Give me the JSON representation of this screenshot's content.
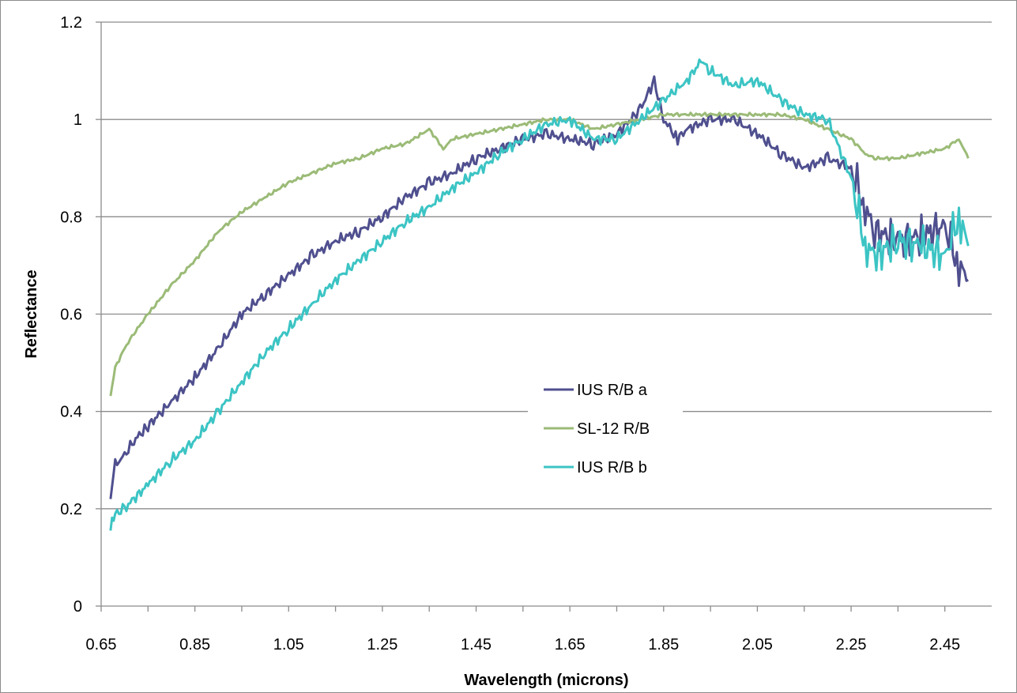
{
  "chart_data": {
    "type": "line",
    "title": "",
    "xlabel": "Wavelength (microns)",
    "ylabel": "Reflectance",
    "xlim": [
      0.65,
      2.55
    ],
    "ylim": [
      0,
      1.2
    ],
    "x_ticks": [
      "0.65",
      "0.85",
      "1.05",
      "1.25",
      "1.45",
      "1.65",
      "1.85",
      "2.05",
      "2.25",
      "2.45"
    ],
    "y_ticks": [
      "0",
      "0.2",
      "0.4",
      "0.6",
      "0.8",
      "1",
      "1.2"
    ],
    "grid": "horizontal major gridlines",
    "legend_position": "center",
    "series": [
      {
        "name": "IUS R/B a",
        "color": "#4f4f8f",
        "x": [
          0.67,
          0.68,
          0.7,
          0.72,
          0.75,
          0.8,
          0.85,
          0.9,
          0.95,
          1.0,
          1.05,
          1.1,
          1.15,
          1.2,
          1.25,
          1.3,
          1.35,
          1.4,
          1.45,
          1.5,
          1.55,
          1.6,
          1.65,
          1.7,
          1.75,
          1.8,
          1.83,
          1.85,
          1.88,
          1.9,
          1.95,
          2.0,
          2.05,
          2.1,
          2.15,
          2.2,
          2.25,
          2.28,
          2.3,
          2.35,
          2.4,
          2.45,
          2.48,
          2.5
        ],
        "y": [
          0.22,
          0.29,
          0.31,
          0.34,
          0.37,
          0.42,
          0.47,
          0.53,
          0.6,
          0.64,
          0.68,
          0.72,
          0.75,
          0.77,
          0.8,
          0.84,
          0.87,
          0.89,
          0.92,
          0.94,
          0.96,
          0.97,
          0.96,
          0.95,
          0.97,
          1.02,
          1.08,
          1.0,
          0.96,
          0.98,
          1.0,
          1.0,
          0.97,
          0.93,
          0.9,
          0.92,
          0.9,
          0.82,
          0.77,
          0.75,
          0.76,
          0.78,
          0.7,
          0.67
        ]
      },
      {
        "name": "SL-12 R/B",
        "color": "#9bbb77",
        "x": [
          0.67,
          0.68,
          0.7,
          0.72,
          0.75,
          0.8,
          0.85,
          0.9,
          0.95,
          1.0,
          1.05,
          1.1,
          1.15,
          1.2,
          1.25,
          1.3,
          1.35,
          1.38,
          1.4,
          1.45,
          1.5,
          1.55,
          1.6,
          1.65,
          1.7,
          1.75,
          1.8,
          1.85,
          1.9,
          1.95,
          2.0,
          2.05,
          2.1,
          2.15,
          2.2,
          2.25,
          2.28,
          2.3,
          2.35,
          2.4,
          2.45,
          2.48,
          2.5
        ],
        "y": [
          0.43,
          0.49,
          0.53,
          0.56,
          0.6,
          0.66,
          0.71,
          0.77,
          0.81,
          0.84,
          0.87,
          0.89,
          0.91,
          0.92,
          0.94,
          0.95,
          0.98,
          0.94,
          0.96,
          0.97,
          0.98,
          0.99,
          1.0,
          1.0,
          0.98,
          0.99,
          1.0,
          1.01,
          1.01,
          1.01,
          1.01,
          1.01,
          1.01,
          1.0,
          0.98,
          0.96,
          0.93,
          0.92,
          0.92,
          0.93,
          0.94,
          0.96,
          0.92
        ]
      },
      {
        "name": "IUS R/B b",
        "color": "#3cc4c4",
        "x": [
          0.67,
          0.68,
          0.7,
          0.72,
          0.75,
          0.8,
          0.85,
          0.9,
          0.95,
          1.0,
          1.05,
          1.1,
          1.15,
          1.2,
          1.25,
          1.3,
          1.35,
          1.4,
          1.45,
          1.5,
          1.55,
          1.6,
          1.65,
          1.7,
          1.75,
          1.8,
          1.85,
          1.9,
          1.93,
          1.95,
          2.0,
          2.05,
          2.1,
          2.15,
          2.2,
          2.25,
          2.28,
          2.3,
          2.35,
          2.4,
          2.45,
          2.48,
          2.5
        ],
        "y": [
          0.16,
          0.19,
          0.2,
          0.22,
          0.25,
          0.3,
          0.34,
          0.4,
          0.46,
          0.52,
          0.57,
          0.62,
          0.67,
          0.71,
          0.75,
          0.79,
          0.82,
          0.86,
          0.89,
          0.93,
          0.96,
          0.99,
          1.0,
          0.96,
          0.96,
          1.0,
          1.04,
          1.08,
          1.12,
          1.1,
          1.07,
          1.08,
          1.04,
          1.01,
          1.0,
          0.88,
          0.74,
          0.72,
          0.75,
          0.74,
          0.72,
          0.8,
          0.74
        ]
      }
    ]
  }
}
